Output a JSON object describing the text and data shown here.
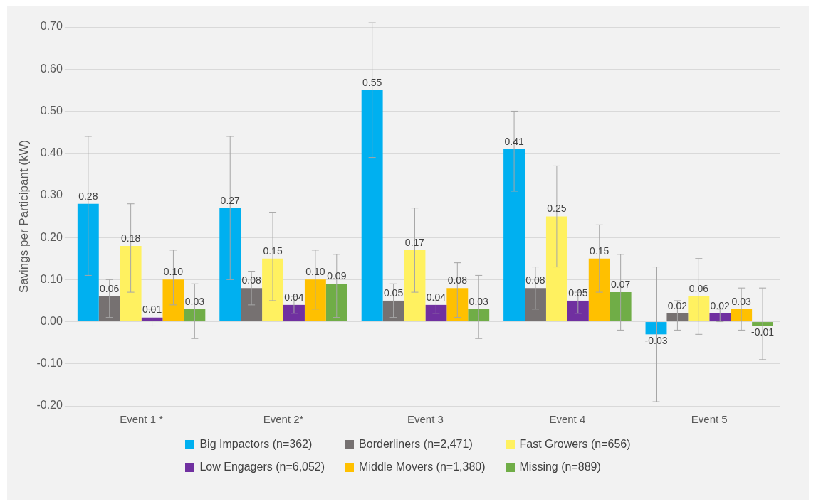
{
  "chart_data": {
    "type": "bar",
    "ylabel": "Savings per Participant (kW)",
    "categories": [
      "Event 1 *",
      "Event 2*",
      "Event 3",
      "Event 4",
      "Event 5"
    ],
    "series": [
      {
        "name": "Big Impactors (n=362)",
        "color": "#00b0f0",
        "values": [
          0.28,
          0.27,
          0.55,
          0.41,
          -0.03
        ],
        "value_labels": [
          "0.28",
          "0.27",
          "0.55",
          "0.41",
          "-0.03"
        ],
        "errors": [
          [
            0.11,
            0.44
          ],
          [
            0.1,
            0.44
          ],
          [
            0.39,
            0.71
          ],
          [
            0.31,
            0.5
          ],
          [
            -0.19,
            0.13
          ]
        ]
      },
      {
        "name": "Borderliners (n=2,471)",
        "color": "#767171",
        "values": [
          0.06,
          0.08,
          0.05,
          0.08,
          0.02
        ],
        "value_labels": [
          "0.06",
          "0.08",
          "0.05",
          "0.08",
          "0.02"
        ],
        "errors": [
          [
            0.01,
            0.1
          ],
          [
            0.04,
            0.12
          ],
          [
            0.01,
            0.09
          ],
          [
            0.03,
            0.13
          ],
          [
            -0.02,
            0.05
          ]
        ]
      },
      {
        "name": "Fast Growers (n=656)",
        "color": "#fff160",
        "values": [
          0.18,
          0.15,
          0.17,
          0.25,
          0.06
        ],
        "value_labels": [
          "0.18",
          "0.15",
          "0.17",
          "0.25",
          "0.06"
        ],
        "errors": [
          [
            0.07,
            0.28
          ],
          [
            0.05,
            0.26
          ],
          [
            0.07,
            0.27
          ],
          [
            0.13,
            0.37
          ],
          [
            -0.03,
            0.15
          ]
        ]
      },
      {
        "name": "Low Engagers (n=6,052)",
        "color": "#7030a0",
        "values": [
          0.01,
          0.04,
          0.04,
          0.05,
          0.02
        ],
        "value_labels": [
          "0.01",
          "0.04",
          "0.04",
          "0.05",
          "0.02"
        ],
        "errors": [
          [
            -0.01,
            0.03
          ],
          [
            0.02,
            0.06
          ],
          [
            0.02,
            0.05
          ],
          [
            0.02,
            0.07
          ],
          [
            0.0,
            0.03
          ]
        ]
      },
      {
        "name": "Middle Movers (n=1,380)",
        "color": "#ffc000",
        "values": [
          0.1,
          0.1,
          0.08,
          0.15,
          0.03
        ],
        "value_labels": [
          "0.10",
          "0.10",
          "0.08",
          "0.15",
          "0.03"
        ],
        "errors": [
          [
            0.04,
            0.17
          ],
          [
            0.03,
            0.17
          ],
          [
            0.01,
            0.14
          ],
          [
            0.07,
            0.23
          ],
          [
            -0.02,
            0.08
          ]
        ]
      },
      {
        "name": "Missing (n=889)",
        "color": "#70ad47",
        "values": [
          0.03,
          0.09,
          0.03,
          0.07,
          -0.01
        ],
        "value_labels": [
          "0.03",
          "0.09",
          "0.03",
          "0.07",
          "-0.01"
        ],
        "errors": [
          [
            -0.04,
            0.09
          ],
          [
            0.01,
            0.16
          ],
          [
            -0.04,
            0.11
          ],
          [
            -0.02,
            0.16
          ],
          [
            -0.09,
            0.08
          ]
        ]
      }
    ],
    "ylim": [
      -0.2,
      0.7
    ],
    "yticks": [
      {
        "value": -0.2,
        "label": "-0.20"
      },
      {
        "value": -0.1,
        "label": "-0.10"
      },
      {
        "value": 0,
        "label": "0.00"
      },
      {
        "value": 0.1,
        "label": "0.10"
      },
      {
        "value": 0.2,
        "label": "0.20"
      },
      {
        "value": 0.3,
        "label": "0.30"
      },
      {
        "value": 0.4,
        "label": "0.40"
      },
      {
        "value": 0.5,
        "label": "0.50"
      },
      {
        "value": 0.6,
        "label": "0.60"
      },
      {
        "value": 0.7,
        "label": "0.70"
      }
    ],
    "grid": "y",
    "legend": "bottom"
  }
}
